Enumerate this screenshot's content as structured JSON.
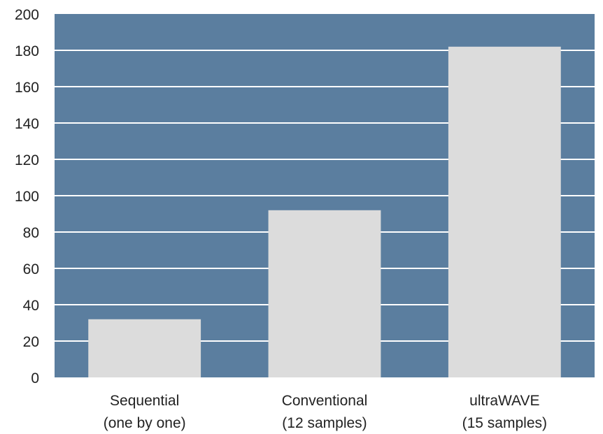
{
  "chart_data": {
    "type": "bar",
    "categories": [
      [
        "Sequential",
        "(one by one)"
      ],
      [
        "Conventional",
        "(12 samples)"
      ],
      [
        "ultraWAVE",
        "(15 samples)"
      ]
    ],
    "values": [
      32,
      92,
      182
    ],
    "ylim": [
      0,
      200
    ],
    "yticks": [
      0,
      20,
      40,
      60,
      80,
      100,
      120,
      140,
      160,
      180,
      200
    ],
    "grid": true,
    "title": "",
    "xlabel": "",
    "ylabel": "",
    "colors": {
      "plot_background": "#5b7e9f",
      "bar": "#dcdcdc",
      "gridline": "#ffffff",
      "text": "#222222"
    }
  }
}
